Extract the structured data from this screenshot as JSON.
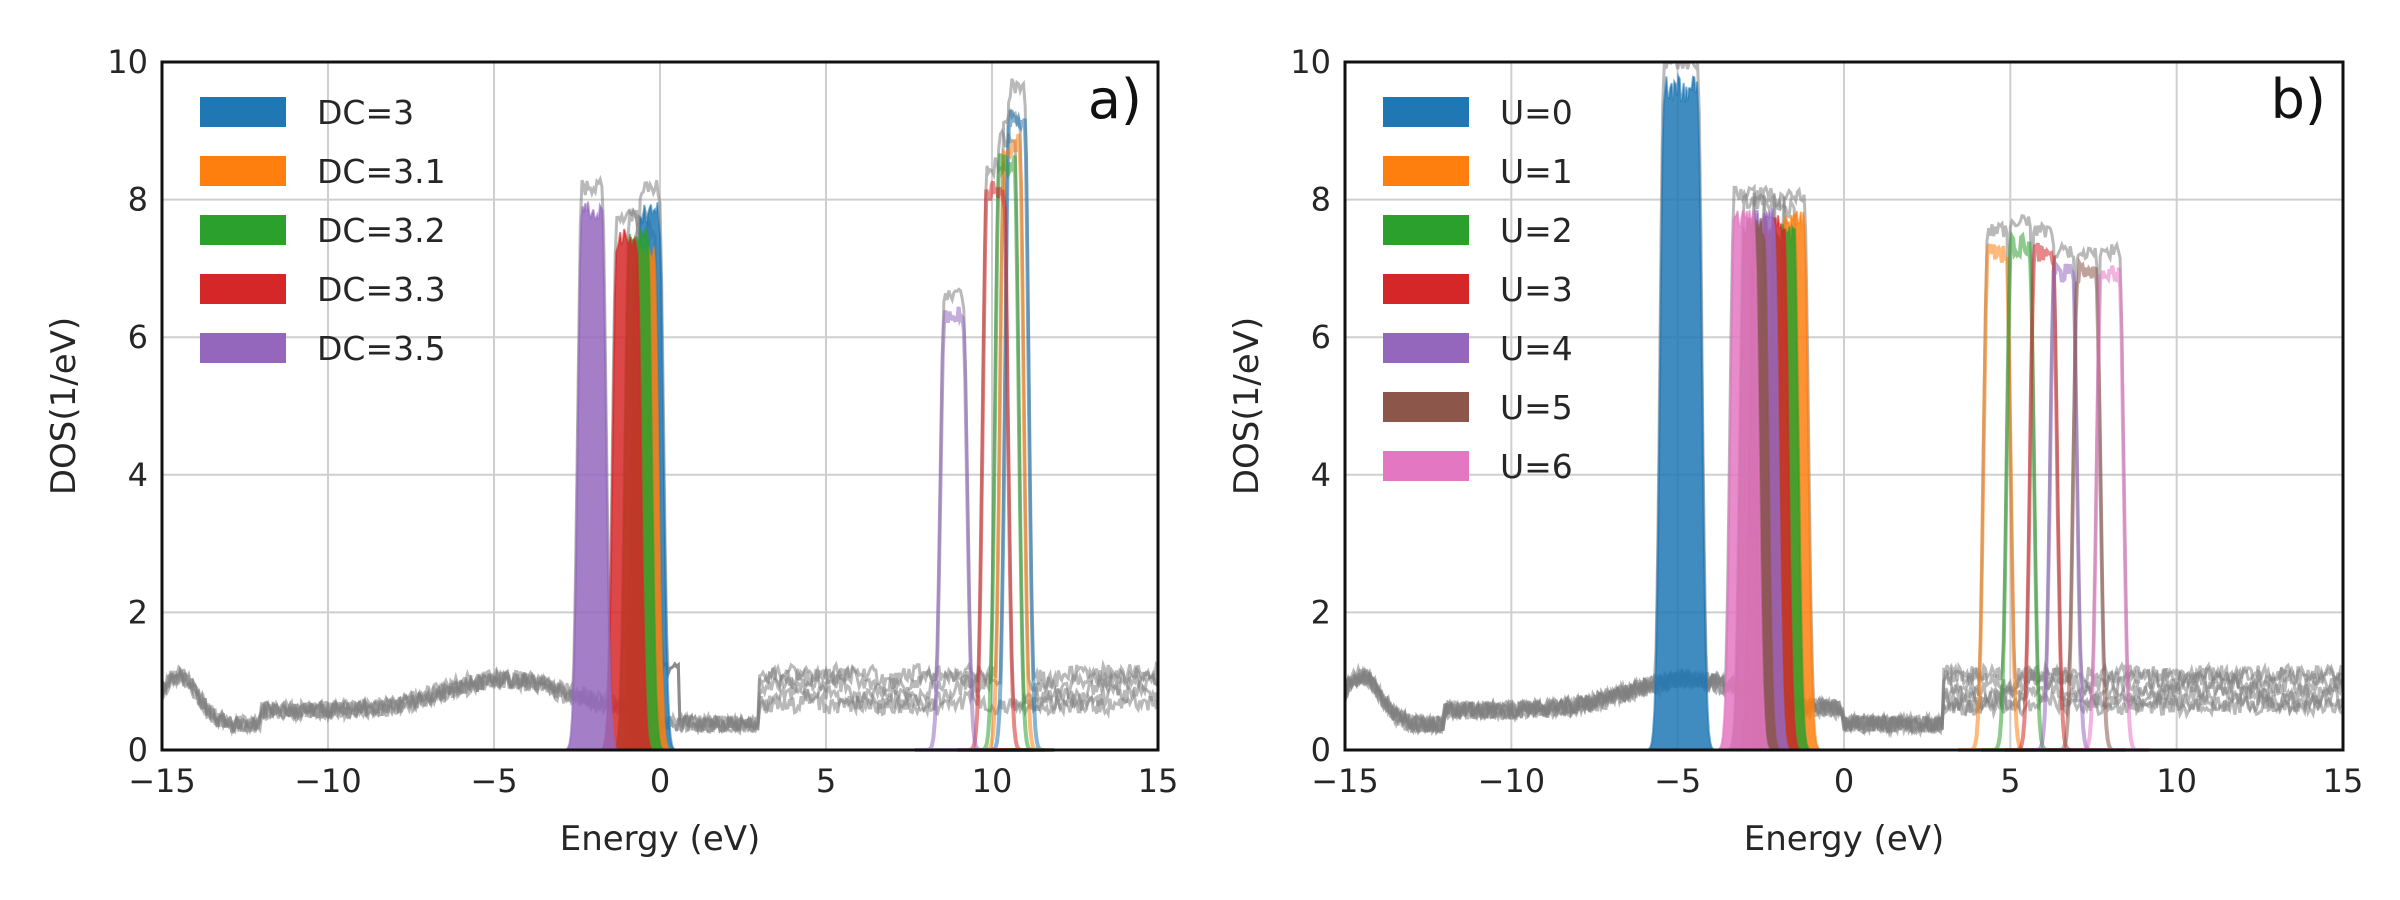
{
  "chart_data": [
    {
      "panel_label": "a)",
      "type": "area",
      "xlabel": "Energy (eV)",
      "ylabel": "DOS(1/eV)",
      "xlim": [
        -15,
        15
      ],
      "ylim": [
        0,
        10
      ],
      "xticks": [
        -15,
        -10,
        -5,
        0,
        5,
        10,
        15
      ],
      "xtick_labels": [
        "−15",
        "−10",
        "−5",
        "0",
        "5",
        "10",
        "15"
      ],
      "yticks": [
        0,
        2,
        4,
        6,
        8,
        10
      ],
      "ytick_labels": [
        "0",
        "2",
        "4",
        "6",
        "8",
        "10"
      ],
      "grid": true,
      "legend_position": "upper-left",
      "total_dos_color": "#808080",
      "series": [
        {
          "name": "DC=3",
          "color": "#1f77b4",
          "peaks": [
            {
              "center": -0.3,
              "height": 7.9,
              "width": 0.55
            },
            {
              "center": 10.75,
              "height": 9.3,
              "width": 0.45
            }
          ]
        },
        {
          "name": "DC=3.1",
          "color": "#ff7f0e",
          "peaks": [
            {
              "center": -0.45,
              "height": 7.3,
              "width": 0.55
            },
            {
              "center": 10.6,
              "height": 8.9,
              "width": 0.45
            }
          ]
        },
        {
          "name": "DC=3.2",
          "color": "#2ca02c",
          "peaks": [
            {
              "center": -0.65,
              "height": 7.5,
              "width": 0.55
            },
            {
              "center": 10.45,
              "height": 8.6,
              "width": 0.45
            }
          ]
        },
        {
          "name": "DC=3.3",
          "color": "#d62728",
          "peaks": [
            {
              "center": -1.0,
              "height": 7.5,
              "width": 0.6
            },
            {
              "center": 10.1,
              "height": 8.2,
              "width": 0.5
            }
          ]
        },
        {
          "name": "DC=3.5",
          "color": "#9467bd",
          "peaks": [
            {
              "center": -2.05,
              "height": 7.9,
              "width": 0.6
            },
            {
              "center": 8.85,
              "height": 6.4,
              "width": 0.55
            }
          ]
        }
      ]
    },
    {
      "panel_label": "b)",
      "type": "area",
      "xlabel": "Energy (eV)",
      "ylabel": "DOS(1/eV)",
      "xlim": [
        -15,
        15
      ],
      "ylim": [
        0,
        10
      ],
      "xticks": [
        -15,
        -10,
        -5,
        0,
        5,
        10,
        15
      ],
      "xtick_labels": [
        "−15",
        "−10",
        "−5",
        "0",
        "5",
        "10",
        "15"
      ],
      "yticks": [
        0,
        2,
        4,
        6,
        8,
        10
      ],
      "ytick_labels": [
        "0",
        "2",
        "4",
        "6",
        "8",
        "10"
      ],
      "grid": true,
      "legend_position": "upper-left",
      "total_dos_color": "#808080",
      "series": [
        {
          "name": "U=0",
          "color": "#1f77b4",
          "peaks": [
            {
              "center": -4.9,
              "height": 9.7,
              "width": 1.0
            }
          ]
        },
        {
          "name": "U=1",
          "color": "#ff7f0e",
          "peaks": [
            {
              "center": -1.5,
              "height": 7.8,
              "width": 0.6
            },
            {
              "center": 4.6,
              "height": 7.3,
              "width": 0.55
            }
          ]
        },
        {
          "name": "U=2",
          "color": "#2ca02c",
          "peaks": [
            {
              "center": -1.8,
              "height": 7.6,
              "width": 0.6
            },
            {
              "center": 5.3,
              "height": 7.4,
              "width": 0.55
            }
          ]
        },
        {
          "name": "U=3",
          "color": "#d62728",
          "peaks": [
            {
              "center": -2.1,
              "height": 7.7,
              "width": 0.6
            },
            {
              "center": 6.0,
              "height": 7.3,
              "width": 0.55
            }
          ]
        },
        {
          "name": "U=4",
          "color": "#9467bd",
          "peaks": [
            {
              "center": -2.4,
              "height": 7.8,
              "width": 0.6
            },
            {
              "center": 6.6,
              "height": 7.0,
              "width": 0.55
            }
          ]
        },
        {
          "name": "U=5",
          "color": "#8c564b",
          "peaks": [
            {
              "center": -2.7,
              "height": 7.7,
              "width": 0.6
            },
            {
              "center": 7.3,
              "height": 7.0,
              "width": 0.55
            }
          ]
        },
        {
          "name": "U=6",
          "color": "#e377c2",
          "peaks": [
            {
              "center": -3.0,
              "height": 7.8,
              "width": 0.6
            },
            {
              "center": 8.0,
              "height": 7.0,
              "width": 0.55
            }
          ]
        }
      ]
    }
  ]
}
